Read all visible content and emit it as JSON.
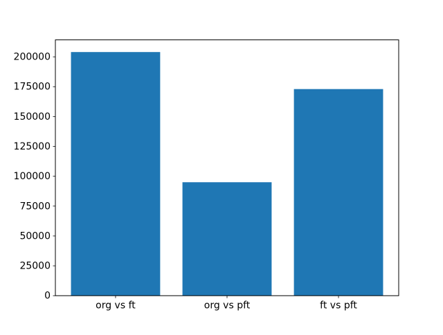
{
  "chart_data": {
    "type": "bar",
    "categories": [
      "org vs ft",
      "org vs pft",
      "ft vs pft"
    ],
    "values": [
      204000,
      95000,
      173000
    ],
    "title": "",
    "xlabel": "",
    "ylabel": "",
    "ylim": [
      0,
      214200
    ],
    "yticks": [
      0,
      25000,
      50000,
      75000,
      100000,
      125000,
      150000,
      175000,
      200000
    ],
    "bar_width_fraction": 0.8,
    "xlim": [
      -0.54,
      2.54
    ],
    "grid": false,
    "legend": null
  },
  "colors": {
    "bar": "#1f77b4",
    "background": "#ffffff",
    "axis": "#000000",
    "tick_label": "#000000"
  }
}
